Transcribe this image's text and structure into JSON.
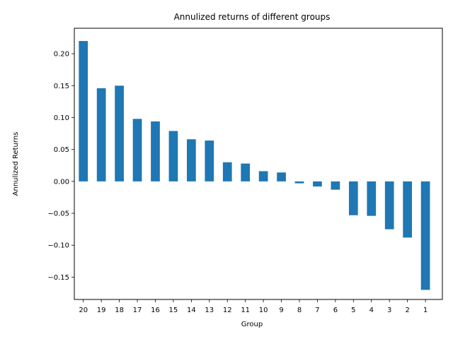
{
  "chart_data": {
    "type": "bar",
    "title": "Annulized returns of different groups",
    "xlabel": "Group",
    "ylabel": "Annulized Returns",
    "categories": [
      "20",
      "19",
      "18",
      "17",
      "16",
      "15",
      "14",
      "13",
      "12",
      "11",
      "10",
      "9",
      "8",
      "7",
      "6",
      "5",
      "4",
      "3",
      "2",
      "1"
    ],
    "values": [
      0.22,
      0.146,
      0.15,
      0.098,
      0.094,
      0.079,
      0.066,
      0.064,
      0.03,
      0.028,
      0.016,
      0.014,
      -0.003,
      -0.008,
      -0.013,
      -0.053,
      -0.054,
      -0.075,
      -0.088,
      -0.17
    ],
    "ylim": [
      -0.185,
      0.24
    ],
    "yticks": [
      -0.15,
      -0.1,
      -0.05,
      0.0,
      0.05,
      0.1,
      0.15,
      0.2
    ],
    "ytick_labels": [
      "−0.15",
      "−0.10",
      "−0.05",
      "0.00",
      "0.05",
      "0.10",
      "0.15",
      "0.20"
    ],
    "grid": false,
    "legend": "none",
    "bar_color": "#1f77b4"
  }
}
